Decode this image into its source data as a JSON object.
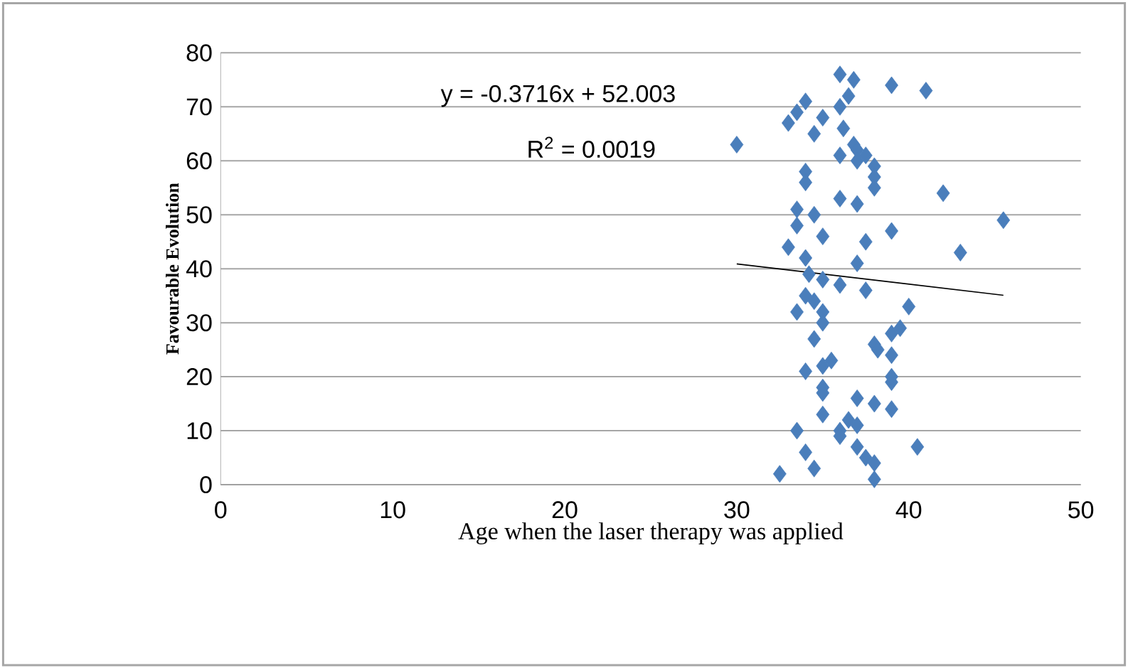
{
  "chart_data": {
    "type": "scatter",
    "xlabel": "Age when the laser therapy was applied",
    "ylabel": "Favourable Evolution",
    "annotations": [
      "y = -0.3716x + 52.003",
      "R$^{2}$ = 0.0019"
    ],
    "xlim": [
      0,
      50
    ],
    "xticks": [
      0,
      10,
      20,
      30,
      40,
      50
    ],
    "ylim": [
      0,
      80
    ],
    "yticks": [
      0,
      10,
      20,
      30,
      40,
      50,
      60,
      70,
      80
    ],
    "grid": "y",
    "marker": "diamond",
    "series": [
      {
        "color": "#4a7ebb",
        "x": [
          36,
          36.8,
          39,
          41,
          34,
          33.5,
          33,
          36.5,
          36,
          36.2,
          35,
          34.5,
          36.8,
          37,
          37.5,
          36,
          30,
          38,
          38,
          38,
          37,
          34,
          34,
          42,
          36,
          37,
          45.5,
          33.5,
          34.5,
          39,
          35,
          37.5,
          33,
          43,
          34,
          37,
          34.2,
          35,
          36,
          37.5,
          33.5,
          40,
          34,
          34.5,
          35,
          35,
          33.5,
          39.5,
          39,
          38,
          38.2,
          39,
          34.5,
          35.5,
          34,
          35,
          39,
          39,
          38,
          37,
          35,
          35,
          35,
          36.5,
          37,
          36,
          33.5,
          36,
          39,
          37,
          37.5,
          38,
          38,
          40.5,
          34,
          34.5,
          32.5
        ],
        "values": [
          76,
          75,
          74,
          73,
          71,
          69,
          67,
          72,
          70,
          66,
          68,
          65,
          63,
          62,
          61,
          61,
          63,
          59,
          57,
          55,
          60,
          58,
          56,
          54,
          53,
          52,
          49,
          51,
          50,
          47,
          46,
          45,
          44,
          43,
          42,
          41,
          39,
          38,
          37,
          36,
          48,
          33,
          35,
          34,
          32,
          30,
          32,
          29,
          28,
          26,
          25,
          24,
          27,
          23,
          21,
          22,
          19,
          20,
          15,
          16,
          18,
          17,
          13,
          12,
          11,
          10,
          10,
          9,
          14,
          7,
          5,
          4,
          1,
          7,
          6,
          3,
          2
        ]
      },
      {
        "type": "line",
        "marker": "none",
        "color": "#000000",
        "x": [
          30,
          45.5
        ],
        "values": [
          40.9,
          35.1
        ]
      }
    ]
  }
}
